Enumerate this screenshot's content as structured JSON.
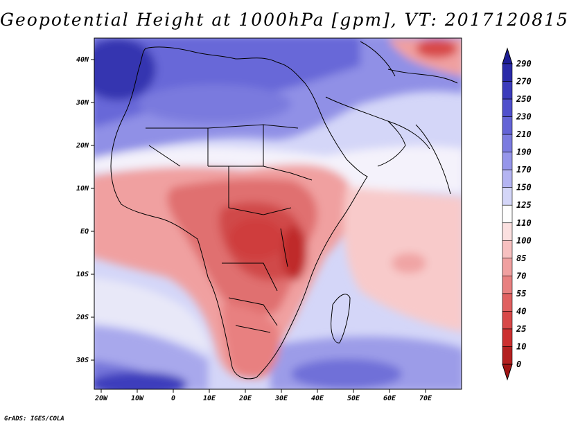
{
  "title": "Geopotential Height at 1000hPa [gpm], VT: 2017120815",
  "credit": "GrADS: IGES/COLA",
  "map": {
    "lat_labels": [
      "40N",
      "30N",
      "20N",
      "10N",
      "EQ",
      "10S",
      "20S",
      "30S"
    ],
    "lon_labels": [
      "20W",
      "10W",
      "0",
      "10E",
      "20E",
      "30E",
      "40E",
      "50E",
      "60E",
      "70E"
    ]
  },
  "colorbar": {
    "levels": [
      "290",
      "270",
      "250",
      "230",
      "210",
      "190",
      "170",
      "150",
      "125",
      "110",
      "100",
      "85",
      "70",
      "55",
      "40",
      "25",
      "10",
      "0"
    ],
    "colors": [
      "#1c1c94",
      "#2a2aa8",
      "#3c3cbc",
      "#5050cc",
      "#6464d6",
      "#7c7ce0",
      "#9696ea",
      "#b4b4f2",
      "#d4d6f8",
      "#fefefe",
      "#fbe0e0",
      "#f7c0c0",
      "#f0a0a0",
      "#e88080",
      "#e06060",
      "#d84848",
      "#cc3030",
      "#b42020",
      "#a01414"
    ],
    "extend": "both"
  },
  "palette": {
    "ocean_blue": "#d4d6f8",
    "land_red": "#e06060",
    "coast": "#000000"
  }
}
